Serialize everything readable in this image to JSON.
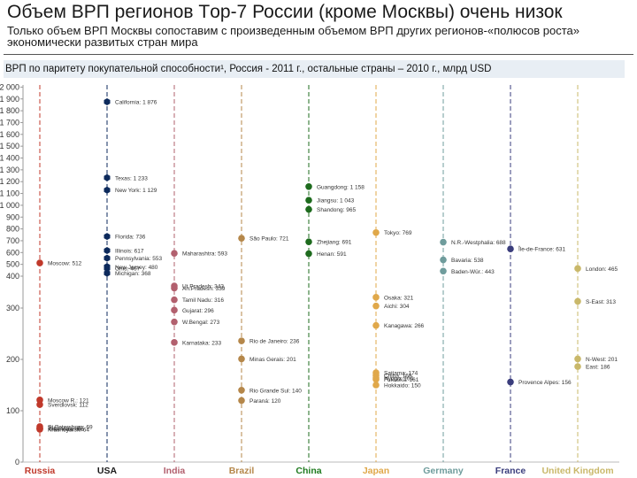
{
  "header": {
    "title": "Объем ВРП регионов Тop-7 России (кроме Москвы) очень низок",
    "subtitle": "Только объем ВРП Москвы сопоставим с произведенным объемом ВРП других регионов-«полюсов роста» экономически развитых стран мира",
    "caption": "ВРП по паритету покупательной способности¹, Россия - 2011 г., остальные страны – 2010 г., млрд USD"
  },
  "chart_data": {
    "type": "scatter",
    "title": "ВРП по паритету покупательной способности¹, Россия - 2011 г., остальные страны – 2010 г., млрд USD",
    "xlabel": "",
    "ylabel": "",
    "scale": "piecewise",
    "y_ticks_upper": [
      400,
      500,
      600,
      700,
      800,
      900,
      1000,
      1100,
      1200,
      1300,
      1400,
      1500,
      1600,
      1700,
      1800,
      1900,
      2000
    ],
    "y_ticks_lower": [
      0,
      100,
      200,
      300
    ],
    "categories": [
      {
        "name": "Russia",
        "color": "#c0392b",
        "label_color": "#c0392b"
      },
      {
        "name": "USA",
        "color": "#0d2a5c",
        "label_color": "#1b1b1b"
      },
      {
        "name": "India",
        "color": "#b2606e",
        "label_color": "#b2606e"
      },
      {
        "name": "Brazil",
        "color": "#b5874a",
        "label_color": "#b5874a"
      },
      {
        "name": "China",
        "color": "#1e6b1e",
        "label_color": "#1e7a1e"
      },
      {
        "name": "Japan",
        "color": "#e0a84a",
        "label_color": "#e0a84a"
      },
      {
        "name": "Germany",
        "color": "#6f9c9c",
        "label_color": "#6f9c9c"
      },
      {
        "name": "France",
        "color": "#3a3d7c",
        "label_color": "#3a3d7c"
      },
      {
        "name": "United Kingdom",
        "color": "#c9b86a",
        "label_color": "#c9b86a"
      }
    ],
    "points": [
      {
        "cat": 0,
        "y": 512,
        "label": "Moscow: 512"
      },
      {
        "cat": 0,
        "y": 121,
        "label": "Moscow R.: 121"
      },
      {
        "cat": 0,
        "y": 112,
        "label": "Sverdlovsk: 112"
      },
      {
        "cat": 0,
        "y": 69,
        "label": "St.Petersburg: 69"
      },
      {
        "cat": 0,
        "y": 66,
        "label": "Tatarstan: 66"
      },
      {
        "cat": 0,
        "y": 65,
        "label": "Krasnodar: 65"
      },
      {
        "cat": 0,
        "y": 64,
        "label": "Krasnoyarsk: 64"
      },
      {
        "cat": 1,
        "y": 1876,
        "label": "California: 1 876"
      },
      {
        "cat": 1,
        "y": 1233,
        "label": "Texas: 1 233"
      },
      {
        "cat": 1,
        "y": 1129,
        "label": "New York: 1 129"
      },
      {
        "cat": 1,
        "y": 736,
        "label": "Florida: 736"
      },
      {
        "cat": 1,
        "y": 617,
        "label": "Illinois: 617"
      },
      {
        "cat": 1,
        "y": 553,
        "label": "Pennsylvania: 553"
      },
      {
        "cat": 1,
        "y": 480,
        "label": "New Jersey: 480"
      },
      {
        "cat": 1,
        "y": 467,
        "label": "Ohio: 467"
      },
      {
        "cat": 1,
        "y": 368,
        "label": "Michigan: 368"
      },
      {
        "cat": 2,
        "y": 593,
        "label": "Maharashtra: 593"
      },
      {
        "cat": 2,
        "y": 343,
        "label": "Ut.Pradesh: 343"
      },
      {
        "cat": 2,
        "y": 339,
        "label": "An.Pradesh: 339"
      },
      {
        "cat": 2,
        "y": 316,
        "label": "Tamil Nadu: 316"
      },
      {
        "cat": 2,
        "y": 296,
        "label": "Gujarat: 296"
      },
      {
        "cat": 2,
        "y": 273,
        "label": "W.Bengal: 273"
      },
      {
        "cat": 2,
        "y": 233,
        "label": "Karnataka: 233"
      },
      {
        "cat": 3,
        "y": 721,
        "label": "São Paulo: 721"
      },
      {
        "cat": 3,
        "y": 236,
        "label": "Rio de Janeiro: 236"
      },
      {
        "cat": 3,
        "y": 201,
        "label": "Minas Gerais: 201"
      },
      {
        "cat": 3,
        "y": 140,
        "label": "Rio Grande Sul: 140"
      },
      {
        "cat": 3,
        "y": 120,
        "label": "Paraná: 120"
      },
      {
        "cat": 4,
        "y": 1158,
        "label": "Guangdong: 1 158"
      },
      {
        "cat": 4,
        "y": 1043,
        "label": "Jiangsu: 1 043"
      },
      {
        "cat": 4,
        "y": 965,
        "label": "Shandong: 965"
      },
      {
        "cat": 4,
        "y": 691,
        "label": "Zhejiang: 691"
      },
      {
        "cat": 4,
        "y": 591,
        "label": "Henan: 591"
      },
      {
        "cat": 5,
        "y": 769,
        "label": "Tokyo: 769"
      },
      {
        "cat": 5,
        "y": 321,
        "label": "Osaka: 321"
      },
      {
        "cat": 5,
        "y": 304,
        "label": "Aichi: 304"
      },
      {
        "cat": 5,
        "y": 266,
        "label": "Kanagawa: 266"
      },
      {
        "cat": 5,
        "y": 174,
        "label": "Saitama: 174"
      },
      {
        "cat": 5,
        "y": 169,
        "label": "Chiba: 169"
      },
      {
        "cat": 5,
        "y": 164,
        "label": "Hyogo: 164"
      },
      {
        "cat": 5,
        "y": 150,
        "label": "Hokkaido: 150"
      },
      {
        "cat": 5,
        "y": 161,
        "label": "Fukuoka: 161"
      },
      {
        "cat": 6,
        "y": 688,
        "label": "N.R.-Westphalia: 688"
      },
      {
        "cat": 6,
        "y": 538,
        "label": "Bavaria: 538"
      },
      {
        "cat": 6,
        "y": 443,
        "label": "Baden-Wür.: 443"
      },
      {
        "cat": 7,
        "y": 631,
        "label": "Île-de-France: 631"
      },
      {
        "cat": 7,
        "y": 156,
        "label": "Provence Alpes: 156"
      },
      {
        "cat": 8,
        "y": 465,
        "label": "London: 465"
      },
      {
        "cat": 8,
        "y": 313,
        "label": "S-East: 313"
      },
      {
        "cat": 8,
        "y": 201,
        "label": "N-West: 201"
      },
      {
        "cat": 8,
        "y": 186,
        "label": "East: 186"
      }
    ]
  }
}
